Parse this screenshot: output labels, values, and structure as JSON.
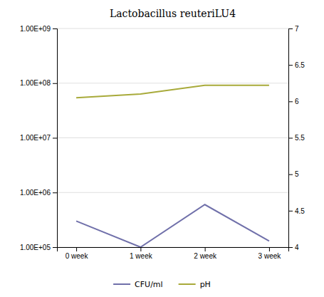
{
  "chart_data": {
    "type": "line",
    "title": "Lactobacillus reuteriLU4",
    "categories": [
      "0 week",
      "1 week",
      "2 week",
      "3 week"
    ],
    "series": [
      {
        "name": "CFU/ml",
        "color": "#7070AA",
        "values": [
          300000,
          100000,
          600000,
          130000
        ]
      },
      {
        "name": "pH",
        "color": "#A8AA3A",
        "axis": "y2",
        "values": [
          6.05,
          6.1,
          6.22,
          6.22
        ]
      }
    ],
    "log": "y",
    "ylim": [
      100000,
      1000000000
    ],
    "yticks": [
      {
        "value": 100000,
        "label": "1.00E+05"
      },
      {
        "value": 1000000,
        "label": "1.00E+06"
      },
      {
        "value": 10000000,
        "label": "1.00E+07"
      },
      {
        "value": 100000000,
        "label": "1.00E+08"
      },
      {
        "value": 1000000000,
        "label": "1.00E+09"
      }
    ],
    "y2lim": [
      4,
      7
    ],
    "y2ticks": [
      4,
      4.5,
      5,
      5.5,
      6,
      6.5,
      7
    ],
    "grid": true,
    "legend": "bottom"
  }
}
